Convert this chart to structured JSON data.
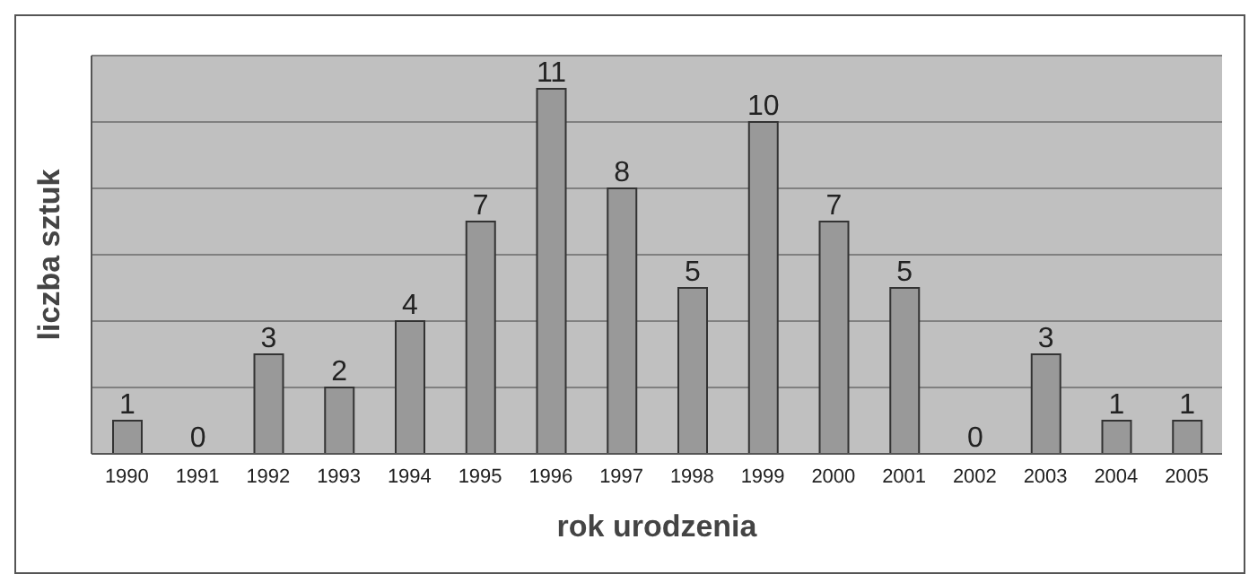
{
  "chart_data": {
    "type": "bar",
    "xlabel": "rok urodzenia",
    "ylabel": "liczba sztuk",
    "categories": [
      "1990",
      "1991",
      "1992",
      "1993",
      "1994",
      "1995",
      "1996",
      "1997",
      "1998",
      "1999",
      "2000",
      "2001",
      "2002",
      "2003",
      "2004",
      "2005"
    ],
    "values": [
      1,
      0,
      3,
      2,
      4,
      7,
      11,
      8,
      5,
      10,
      7,
      5,
      0,
      3,
      1,
      1
    ],
    "color": "#999999",
    "data_labels": true,
    "ylim": [
      0,
      12
    ],
    "yticks": [
      {
        "value": 0,
        "label": null
      },
      {
        "value": 2,
        "label": null
      },
      {
        "value": 4,
        "label": null
      },
      {
        "value": 6,
        "label": null
      },
      {
        "value": 8,
        "label": null
      },
      {
        "value": 10,
        "label": null
      },
      {
        "value": 12,
        "label": null
      }
    ],
    "tick_labels": "x",
    "grid": "y"
  }
}
